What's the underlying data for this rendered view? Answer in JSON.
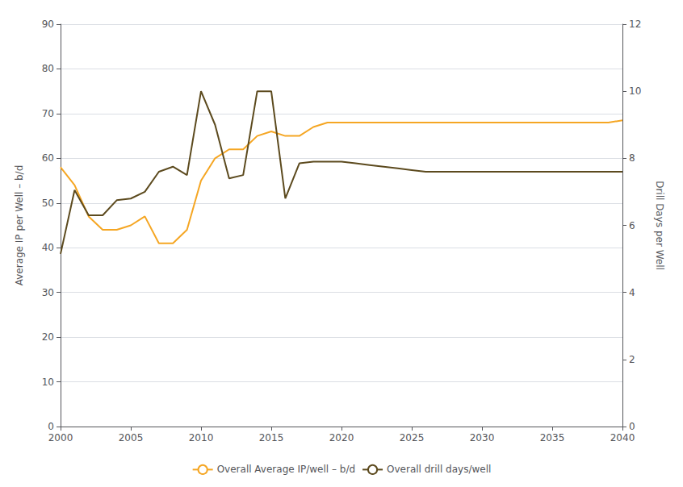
{
  "chart_data": {
    "type": "line",
    "x": [
      2000,
      2001,
      2002,
      2003,
      2004,
      2005,
      2006,
      2007,
      2008,
      2009,
      2010,
      2011,
      2012,
      2013,
      2014,
      2015,
      2016,
      2017,
      2018,
      2019,
      2020,
      2021,
      2022,
      2023,
      2024,
      2025,
      2026,
      2027,
      2028,
      2029,
      2030,
      2031,
      2032,
      2033,
      2034,
      2035,
      2036,
      2037,
      2038,
      2039,
      2040
    ],
    "series": [
      {
        "name": "Overall Average IP/well – b/d",
        "color": "#F5A623",
        "values": [
          58,
          54,
          47,
          44,
          44,
          45,
          47,
          41,
          41,
          44,
          55,
          60,
          62,
          62,
          65,
          66,
          65,
          65,
          67,
          68,
          68,
          68,
          68,
          68,
          68,
          68,
          68,
          68,
          68,
          68,
          68,
          68,
          68,
          68,
          68,
          68,
          68,
          68,
          68,
          68,
          68.5
        ]
      },
      {
        "name": "Overall drill days/well",
        "color": "#5C4A1E",
        "axis": "y2",
        "values": [
          5.15,
          7.05,
          6.3,
          6.3,
          6.75,
          6.8,
          7.0,
          7.6,
          7.75,
          7.5,
          10.0,
          9.0,
          7.4,
          7.5,
          10.0,
          10.0,
          6.8,
          7.85,
          7.9,
          7.9,
          7.9,
          7.85,
          7.8,
          7.75,
          7.7,
          7.65,
          7.6,
          7.6,
          7.6,
          7.6,
          7.6,
          7.6,
          7.6,
          7.6,
          7.6,
          7.6,
          7.6,
          7.6,
          7.6,
          7.6,
          7.6
        ]
      }
    ],
    "ylabel": "Average IP per Well – b/d",
    "y2label": "Drill Days per Well",
    "xlim": [
      2000,
      2040
    ],
    "xticks": [
      2000,
      2005,
      2010,
      2015,
      2020,
      2025,
      2030,
      2035,
      2040
    ],
    "ylim": [
      0,
      90
    ],
    "yticks": [
      0,
      10,
      20,
      30,
      40,
      50,
      60,
      70,
      80,
      90
    ],
    "y2lim": [
      0,
      12
    ],
    "y2ticks": [
      0,
      2,
      4,
      6,
      8,
      10,
      12
    ],
    "grid": true,
    "legend": "bottom"
  }
}
